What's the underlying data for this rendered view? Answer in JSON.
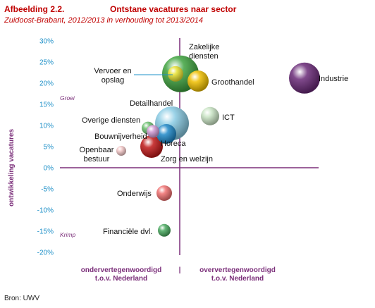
{
  "header": {
    "figure_number": "Afbeelding 2.2.",
    "title": "Ontstane vacatures naar sector",
    "subtitle": "Zuidoost-Brabant, 2012/2013 in verhouding tot 2013/2014"
  },
  "source": "Bron: UWV",
  "chart_data": {
    "type": "scatter",
    "ylabel": "ontwikkeling vacatures",
    "ylim": [
      -20,
      30
    ],
    "yticks": [
      "30%",
      "25%",
      "20%",
      "15%",
      "10%",
      "5%",
      "0%",
      "-5%",
      "-10%",
      "-15%",
      "-20%"
    ],
    "ytick_values": [
      30,
      25,
      20,
      15,
      10,
      5,
      0,
      -5,
      -10,
      -15,
      -20
    ],
    "x_caption_left": "ondervertegenwoordigd\nt.o.v. Nederland",
    "x_caption_sep": "|",
    "x_caption_right": "oververtegenwoordigd\nt.o.v. Nederland",
    "quadrant_labels": {
      "top": "Groei",
      "bottom": "Krimp"
    },
    "grid": false,
    "points": [
      {
        "label": "Zakelijke diensten",
        "y": 22.2,
        "color": "#3fa33f"
      },
      {
        "label": "Vervoer en opslag",
        "y": 22.2,
        "color": "#e8e030"
      },
      {
        "label": "Groothandel",
        "y": 20.5,
        "color": "#f0c000"
      },
      {
        "label": "Industrie",
        "y": 21.2,
        "color": "#6a2a78"
      },
      {
        "label": "Detailhandel",
        "y": 10.5,
        "color": "#89cbe4"
      },
      {
        "label": "ICT",
        "y": 12.2,
        "color": "#c9e4c4"
      },
      {
        "label": "Overige diensten",
        "y": 9.4,
        "color": "#6cc070"
      },
      {
        "label": "Bouwnijverheid",
        "y": 8.0,
        "color": "#1e88c8"
      },
      {
        "label": "Horeca",
        "y": 8.6,
        "color": "#d09ad4"
      },
      {
        "label": "Zorg en welzijn",
        "y": 5.0,
        "color": "#c01818"
      },
      {
        "label": "Openbaar bestuur",
        "y": 4.0,
        "color": "#f2c6c6"
      },
      {
        "label": "Onderwijs",
        "y": -6.0,
        "color": "#f07070"
      },
      {
        "label": "Financiële dvl.",
        "y": -14.8,
        "color": "#4aaa60"
      }
    ]
  }
}
